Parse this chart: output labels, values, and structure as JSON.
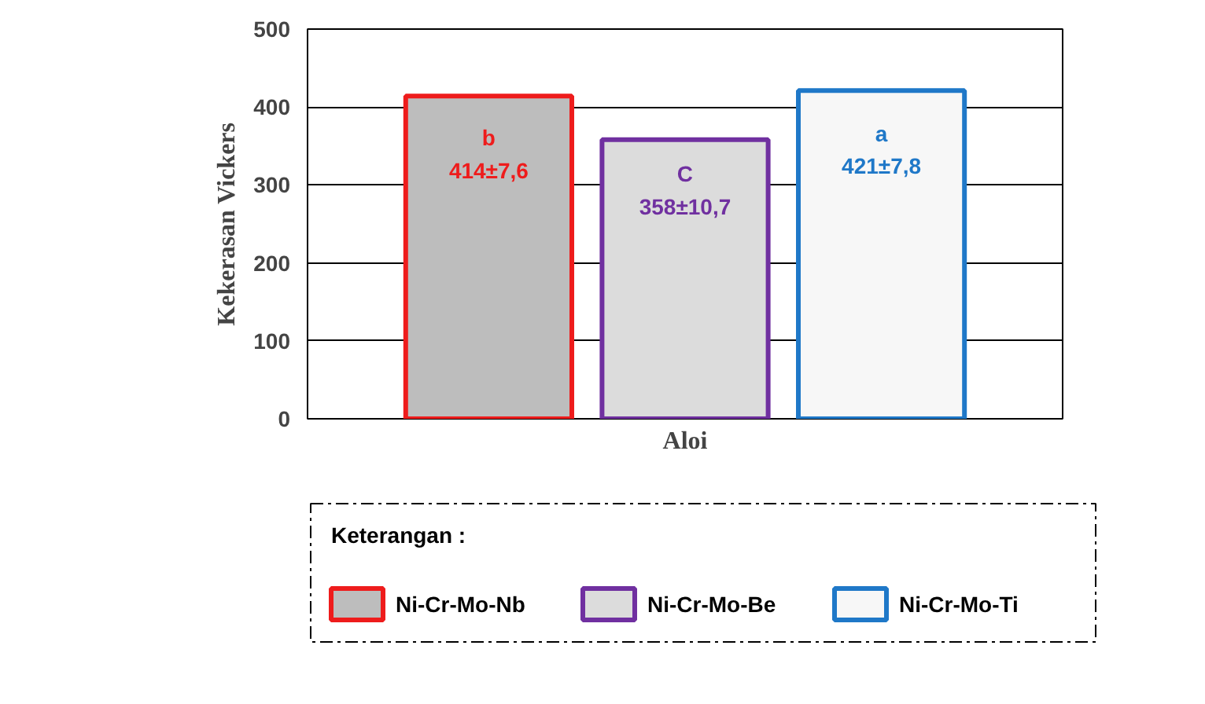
{
  "chart_data": {
    "type": "bar",
    "xlabel": "Aloi",
    "ylabel": "Kekerasan Vickers",
    "legend_title": "Keterangan :",
    "categories": [
      null
    ],
    "series": [
      {
        "name": "Ni-Cr-Mo-Nb",
        "color": "#ee1c1c",
        "values": [
          414
        ],
        "value_labels": [
          "b\n414±7,6"
        ]
      },
      {
        "name": "Ni-Cr-Mo-Be",
        "color": "#7030a0",
        "values": [
          358
        ],
        "value_labels": [
          "C\n358±10,7"
        ]
      },
      {
        "name": "Ni-Cr-Mo-Ti",
        "color": "#1f78c8",
        "values": [
          421
        ],
        "value_labels": [
          "a\n421±7,8"
        ]
      }
    ],
    "ylim": [
      0,
      500
    ],
    "yticks": [
      0,
      100,
      200,
      300,
      400,
      500
    ],
    "grid": "y",
    "legend": "bottom"
  }
}
